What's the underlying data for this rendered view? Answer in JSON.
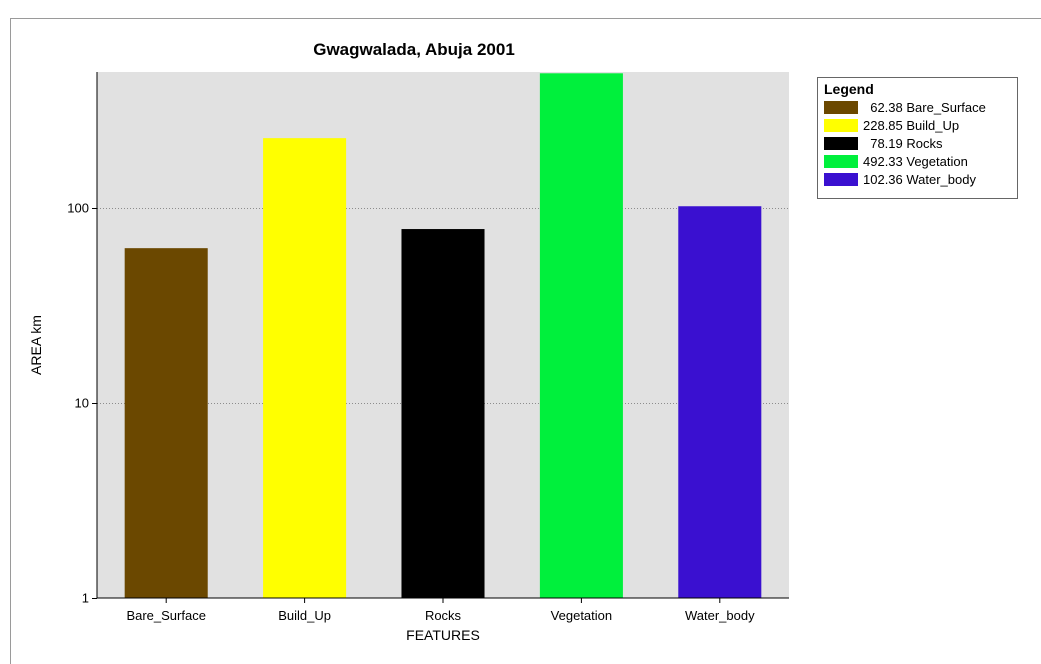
{
  "page": {
    "top_fragment": ""
  },
  "chart_data": {
    "type": "bar",
    "title": "Gwagwalada, Abuja 2001",
    "xlabel": "FEATURES",
    "ylabel": "AREA km",
    "yscale": "log",
    "ylim": [
      1,
      500
    ],
    "yticks": [
      1,
      10,
      100
    ],
    "ytick_labels": [
      "1",
      "10",
      "100"
    ],
    "categories": [
      "Bare_Surface",
      "Build_Up",
      "Rocks",
      "Vegetation",
      "Water_body"
    ],
    "values": [
      62.38,
      228.85,
      78.19,
      492.33,
      102.36
    ],
    "colors": [
      "#6b4800",
      "#ffff00",
      "#000000",
      "#00f03c",
      "#3a10d0"
    ],
    "plot_background": "#e1e1e1",
    "grid": true,
    "legend_position": "right",
    "legend": {
      "title": "Legend",
      "items": [
        {
          "label": "  62.38 Bare_Surface",
          "color": "#6b4800"
        },
        {
          "label": "228.85 Build_Up",
          "color": "#ffff00"
        },
        {
          "label": "  78.19 Rocks",
          "color": "#000000"
        },
        {
          "label": "492.33 Vegetation",
          "color": "#00f03c"
        },
        {
          "label": "102.36 Water_body",
          "color": "#3a10d0"
        }
      ]
    }
  }
}
